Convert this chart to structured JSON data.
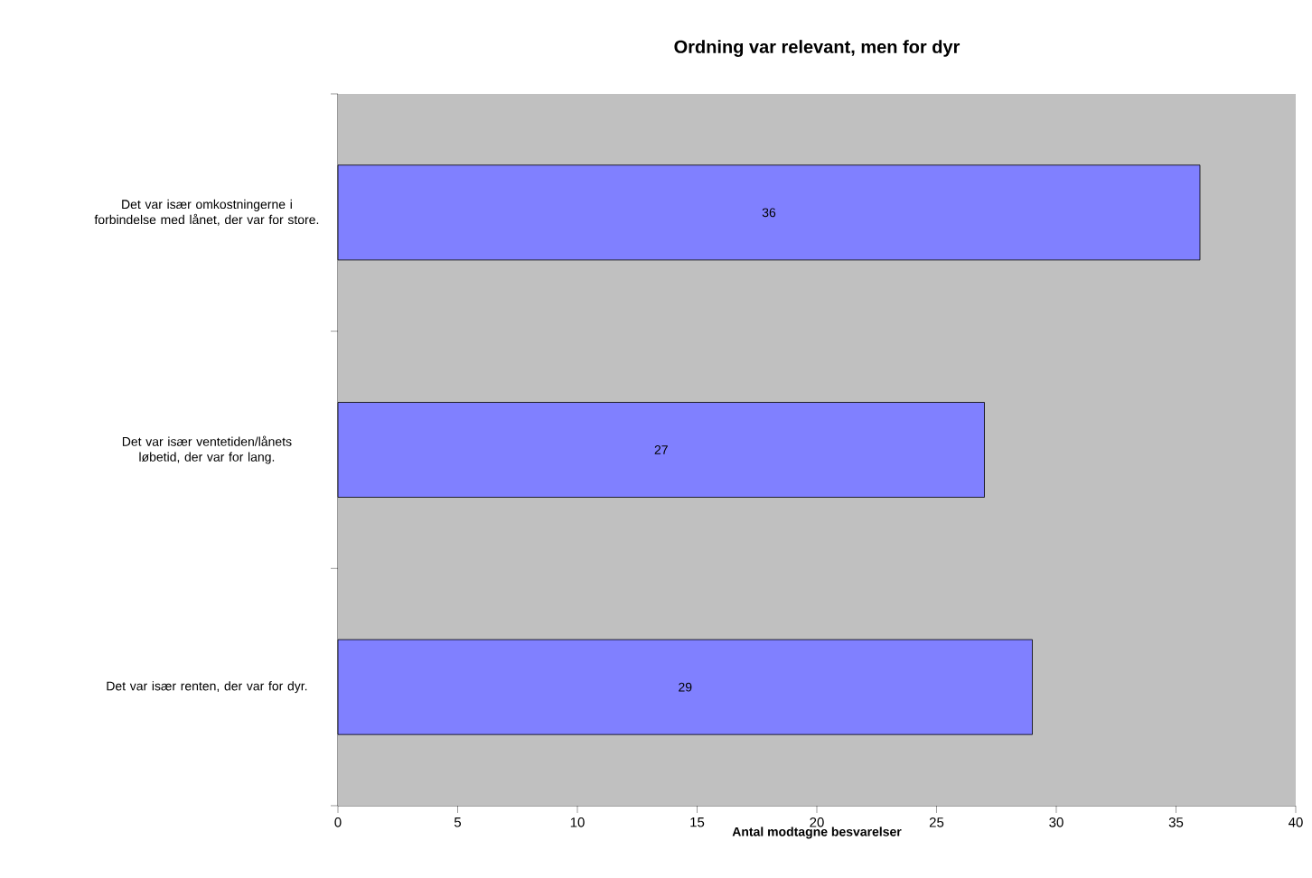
{
  "chart_data": {
    "type": "bar",
    "orientation": "horizontal",
    "title": "Ordning var relevant, men for dyr",
    "categories": [
      "Det var især omkostningerne i forbindelse med lånet, der var for store.",
      "Det var især ventetiden/lånets løbetid, der var for lang.",
      "Det var især renten, der var for dyr."
    ],
    "values": [
      36,
      27,
      29
    ],
    "color": "#8080ff",
    "data_labels": true,
    "xlim": [
      0,
      40
    ],
    "xticks": [
      0,
      5,
      10,
      15,
      20,
      25,
      30,
      35,
      40
    ],
    "xlabel": "Antal modtagne besvarelser",
    "grid": false
  }
}
